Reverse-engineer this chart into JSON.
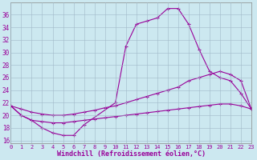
{
  "xlabel": "Windchill (Refroidissement éolien,°C)",
  "background_color": "#cce8f0",
  "line_color": "#990099",
  "xlim": [
    0,
    23
  ],
  "ylim": [
    15.5,
    38
  ],
  "xticks": [
    0,
    1,
    2,
    3,
    4,
    5,
    6,
    7,
    8,
    9,
    10,
    11,
    12,
    13,
    14,
    15,
    16,
    17,
    18,
    19,
    20,
    21,
    22,
    23
  ],
  "yticks": [
    16,
    18,
    20,
    22,
    24,
    26,
    28,
    30,
    32,
    34,
    36
  ],
  "curve1_x": [
    0,
    1,
    2,
    3,
    4,
    5,
    6,
    7,
    10,
    11,
    12,
    13,
    14,
    15,
    16,
    17,
    18,
    19,
    20,
    21,
    22,
    23
  ],
  "curve1_y": [
    21.5,
    20.0,
    19.2,
    18.0,
    17.2,
    16.8,
    16.8,
    18.5,
    22.0,
    31.0,
    34.5,
    35.0,
    35.5,
    37.0,
    37.0,
    34.5,
    30.5,
    27.0,
    26.0,
    25.5,
    23.5,
    21.0
  ],
  "curve2_x": [
    0,
    1,
    2,
    3,
    4,
    5,
    6,
    7,
    8,
    9,
    10,
    11,
    12,
    13,
    14,
    15,
    16,
    17,
    18,
    19,
    20,
    21,
    22,
    23
  ],
  "curve2_y": [
    21.5,
    21.0,
    20.5,
    20.2,
    20.0,
    20.0,
    20.2,
    20.5,
    20.8,
    21.2,
    21.5,
    22.0,
    22.5,
    23.0,
    23.5,
    24.0,
    24.5,
    25.5,
    26.0,
    26.5,
    27.0,
    26.5,
    25.5,
    21.0
  ],
  "curve3_x": [
    0,
    1,
    2,
    3,
    4,
    5,
    6,
    7,
    8,
    9,
    10,
    11,
    12,
    13,
    14,
    15,
    16,
    17,
    18,
    19,
    20,
    21,
    22,
    23
  ],
  "curve3_y": [
    21.5,
    20.0,
    19.2,
    19.0,
    18.8,
    18.8,
    19.0,
    19.2,
    19.4,
    19.6,
    19.8,
    20.0,
    20.2,
    20.4,
    20.6,
    20.8,
    21.0,
    21.2,
    21.4,
    21.6,
    21.8,
    21.8,
    21.5,
    21.0
  ]
}
